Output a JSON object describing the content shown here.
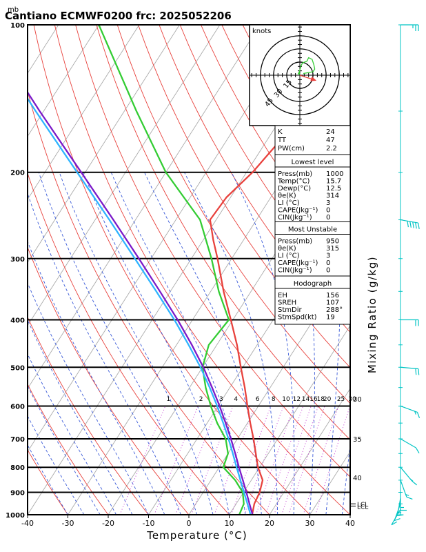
{
  "header": {
    "unit_label": "mb",
    "title": "Cantiano ECMWF0200  frc: 2025052206"
  },
  "chart_data": {
    "type": "skew-t",
    "title": "Cantiano ECMWF0200  frc: 2025052206",
    "xlabel": "Temperature (°C)",
    "y2label": "Mixing Ratio (g/kg)",
    "y_unit": "mb",
    "xlim": [
      -40,
      40
    ],
    "ylim": [
      1000,
      100
    ],
    "y_scale": "log",
    "pressure_ticks": [
      100,
      200,
      300,
      400,
      500,
      600,
      700,
      800,
      900,
      1000
    ],
    "temperature_ticks": [
      -40,
      -30,
      -20,
      -10,
      0,
      10,
      20,
      30,
      40
    ],
    "mixing_ratio_labels": [
      "1",
      "2",
      "3",
      "4",
      "6",
      "8",
      "10",
      "12",
      "14",
      "16",
      "18",
      "20",
      "25",
      "30"
    ],
    "mixing_ratio_values": [
      1,
      2,
      3,
      4,
      6,
      8,
      10,
      12,
      14,
      16,
      18,
      20,
      25,
      30
    ],
    "theta_e_labels": [
      {
        "text": "30",
        "p": 580
      },
      {
        "text": "35",
        "p": 700
      },
      {
        "text": "40",
        "p": 840
      }
    ],
    "series": [
      {
        "name": "",
        "color": "#e8413c",
        "points": [
          [
            1000,
            15.7
          ],
          [
            950,
            14.5
          ],
          [
            900,
            14.0
          ],
          [
            850,
            12.8
          ],
          [
            800,
            9.6
          ],
          [
            750,
            6.9
          ],
          [
            700,
            4.0
          ],
          [
            650,
            0.7
          ],
          [
            600,
            -2.7
          ],
          [
            550,
            -6.3
          ],
          [
            500,
            -10.5
          ],
          [
            450,
            -15.0
          ],
          [
            400,
            -20.5
          ],
          [
            350,
            -26.8
          ],
          [
            300,
            -33.5
          ],
          [
            275,
            -37.5
          ],
          [
            250,
            -41.5
          ],
          [
            225,
            -41.0
          ],
          [
            200,
            -38.5
          ],
          [
            150,
            -35.0
          ],
          [
            100,
            -26.0
          ]
        ]
      },
      {
        "name": "",
        "color": "#33cc33",
        "points": [
          [
            1000,
            12.5
          ],
          [
            950,
            11.9
          ],
          [
            900,
            9.8
          ],
          [
            850,
            6.0
          ],
          [
            800,
            1.0
          ],
          [
            750,
            0.0
          ],
          [
            700,
            -2.9
          ],
          [
            650,
            -7.5
          ],
          [
            600,
            -11.8
          ],
          [
            550,
            -16.0
          ],
          [
            500,
            -20.0
          ],
          [
            450,
            -22.0
          ],
          [
            400,
            -21.0
          ],
          [
            350,
            -28.0
          ],
          [
            300,
            -35.0
          ],
          [
            250,
            -44.0
          ],
          [
            200,
            -60.0
          ],
          [
            150,
            -77.0
          ],
          [
            100,
            -100.0
          ]
        ]
      },
      {
        "name": "",
        "color": "#2fb4ff",
        "points": [
          [
            1000,
            15.3
          ],
          [
            950,
            12.8
          ],
          [
            900,
            10.1
          ],
          [
            850,
            7.3
          ],
          [
            800,
            4.3
          ],
          [
            750,
            1.2
          ],
          [
            700,
            -2.2
          ],
          [
            650,
            -6.0
          ],
          [
            600,
            -10.2
          ],
          [
            550,
            -15.0
          ],
          [
            500,
            -20.5
          ],
          [
            450,
            -27.0
          ],
          [
            400,
            -34.5
          ],
          [
            350,
            -43.5
          ],
          [
            300,
            -54.0
          ],
          [
            250,
            -66.5
          ],
          [
            200,
            -82.0
          ],
          [
            150,
            -102.0
          ],
          [
            110,
            -123.0
          ]
        ]
      },
      {
        "name": "",
        "color": "#7a19c9",
        "points": [
          [
            1000,
            15.8
          ],
          [
            950,
            13.3
          ],
          [
            900,
            10.7
          ],
          [
            850,
            7.9
          ],
          [
            800,
            4.9
          ],
          [
            750,
            1.8
          ],
          [
            700,
            -1.6
          ],
          [
            650,
            -5.4
          ],
          [
            600,
            -9.6
          ],
          [
            550,
            -14.4
          ],
          [
            500,
            -19.8
          ],
          [
            450,
            -26.2
          ],
          [
            400,
            -33.7
          ],
          [
            350,
            -42.6
          ],
          [
            300,
            -53.0
          ],
          [
            250,
            -65.5
          ],
          [
            200,
            -81.0
          ],
          [
            150,
            -101.0
          ],
          [
            110,
            -122.0
          ]
        ]
      }
    ],
    "lcl_labels": [
      {
        "text": "LCL",
        "p": 950
      },
      {
        "text": "LCL",
        "p": 960
      }
    ]
  },
  "hodograph": {
    "unit_label": "knots",
    "ring_labels": [
      "15",
      "30",
      "45"
    ],
    "ring_values_kt": [
      15,
      30,
      45
    ],
    "trace": [
      [
        -1,
        2
      ],
      [
        1,
        10
      ],
      [
        3,
        14
      ],
      [
        8,
        16
      ],
      [
        10,
        20
      ],
      [
        14,
        18
      ],
      [
        16,
        12
      ],
      [
        17,
        7
      ],
      [
        15,
        4
      ],
      [
        10,
        3
      ],
      [
        4,
        2
      ]
    ],
    "storm_motion": {
      "dir_deg": 288,
      "speed_kt": 19
    }
  },
  "indices": {
    "summary": [
      {
        "label": "K",
        "value": "24"
      },
      {
        "label": "TT",
        "value": "47"
      },
      {
        "label": "PW(cm)",
        "value": "2.2"
      }
    ],
    "lowest_level": {
      "heading": "Lowest level",
      "rows": [
        {
          "label": "Press(mb)",
          "value": "1000"
        },
        {
          "label": "Temp(°C)",
          "value": "15.7"
        },
        {
          "label": "Dewp(°C)",
          "value": "12.5"
        },
        {
          "label": "θe(K)",
          "value": "314"
        },
        {
          "label": "LI (°C)",
          "value": "3"
        },
        {
          "label": "CAPE(Jkg⁻¹)",
          "value": "0"
        },
        {
          "label": "CIN(Jkg⁻¹)",
          "value": "0"
        }
      ]
    },
    "most_unstable": {
      "heading": "Most Unstable",
      "rows": [
        {
          "label": "Press(mb)",
          "value": "950"
        },
        {
          "label": "θe(K)",
          "value": "315"
        },
        {
          "label": "LI (°C)",
          "value": "3"
        },
        {
          "label": "CAPE(Jkg⁻¹)",
          "value": "0"
        },
        {
          "label": "CIN(Jkg⁻¹)",
          "value": "0"
        }
      ]
    },
    "hodograph_params": {
      "heading": "Hodograph",
      "rows": [
        {
          "label": "EH",
          "value": "156"
        },
        {
          "label": "SREH",
          "value": "107"
        },
        {
          "label": "StmDir",
          "value": "288°"
        },
        {
          "label": "StmSpd(kt)",
          "value": "19"
        }
      ]
    }
  },
  "wind_profile": [
    {
      "p": 100,
      "dir": 270,
      "kt": 25
    },
    {
      "p": 250,
      "dir": 260,
      "kt": 50
    },
    {
      "p": 400,
      "dir": 270,
      "kt": 20
    },
    {
      "p": 500,
      "dir": 265,
      "kt": 20
    },
    {
      "p": 600,
      "dir": 250,
      "kt": 15
    },
    {
      "p": 700,
      "dir": 240,
      "kt": 10
    },
    {
      "p": 800,
      "dir": 220,
      "kt": 15
    },
    {
      "p": 850,
      "dir": 200,
      "kt": 15
    },
    {
      "p": 900,
      "dir": 180,
      "kt": 15
    },
    {
      "p": 925,
      "dir": 170,
      "kt": 15
    },
    {
      "p": 950,
      "dir": 160,
      "kt": 10
    },
    {
      "p": 975,
      "dir": 150,
      "kt": 10
    }
  ],
  "colors": {
    "temperature": "#e8413c",
    "dewpoint": "#33cc33",
    "isotherm": "#aaaaaa",
    "dry_adiabat": "#e8413c",
    "moist_adiabat": "#3a5ad8",
    "mixing_ratio": "#c23ad0",
    "wind": "#00c4c4"
  }
}
